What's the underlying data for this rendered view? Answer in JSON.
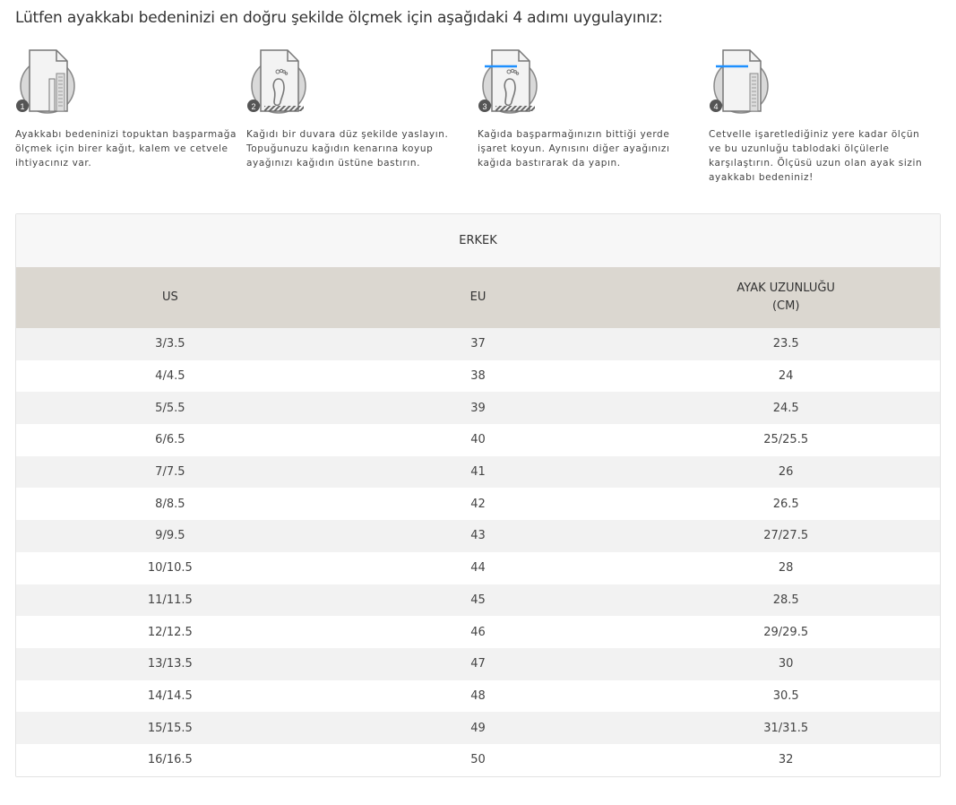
{
  "title": "Lütfen ayakkabı bedeninizi en doğru şekilde ölçmek için aşağıdaki 4 adımı uygulayınız:",
  "steps": [
    {
      "number": "1",
      "icon": "paper-ruler-pencil",
      "text": "Ayakkabı bedeninizi topuktan başparmağa ölçmek için birer kağıt, kalem ve cetvele ihtiyacınız var."
    },
    {
      "number": "2",
      "icon": "paper-foot",
      "text": "Kağıdı bir duvara düz şekilde yaslayın. Topuğunuzu kağıdın kenarına koyup ayağınızı kağıdın üstüne bastırın."
    },
    {
      "number": "3",
      "icon": "paper-foot-mark",
      "text": "Kağıda başparmağınızın bittiği yerde işaret koyun. Aynısını diğer ayağınızı kağıda bastırarak da yapın."
    },
    {
      "number": "4",
      "icon": "paper-ruler-mark",
      "text": "Cetvelle işaretlediğiniz yere kadar ölçün ve bu uzunluğu tablodaki ölçülerle karşılaştırın. Ölçüsü uzun olan ayak sizin ayakkabı bedeniniz!"
    }
  ],
  "colors": {
    "mark": "#1e90ff",
    "header_bg": "#dbd7d0",
    "row_alt": "#f2f2f2"
  },
  "table": {
    "caption": "ERKEK",
    "headers": [
      "US",
      "EU",
      "AYAK UZUNLUĞU\n(CM)"
    ],
    "rows": [
      [
        "3/3.5",
        "37",
        "23.5"
      ],
      [
        "4/4.5",
        "38",
        "24"
      ],
      [
        "5/5.5",
        "39",
        "24.5"
      ],
      [
        "6/6.5",
        "40",
        "25/25.5"
      ],
      [
        "7/7.5",
        "41",
        "26"
      ],
      [
        "8/8.5",
        "42",
        "26.5"
      ],
      [
        "9/9.5",
        "43",
        "27/27.5"
      ],
      [
        "10/10.5",
        "44",
        "28"
      ],
      [
        "11/11.5",
        "45",
        "28.5"
      ],
      [
        "12/12.5",
        "46",
        "29/29.5"
      ],
      [
        "13/13.5",
        "47",
        "30"
      ],
      [
        "14/14.5",
        "48",
        "30.5"
      ],
      [
        "15/15.5",
        "49",
        "31/31.5"
      ],
      [
        "16/16.5",
        "50",
        "32"
      ]
    ]
  }
}
